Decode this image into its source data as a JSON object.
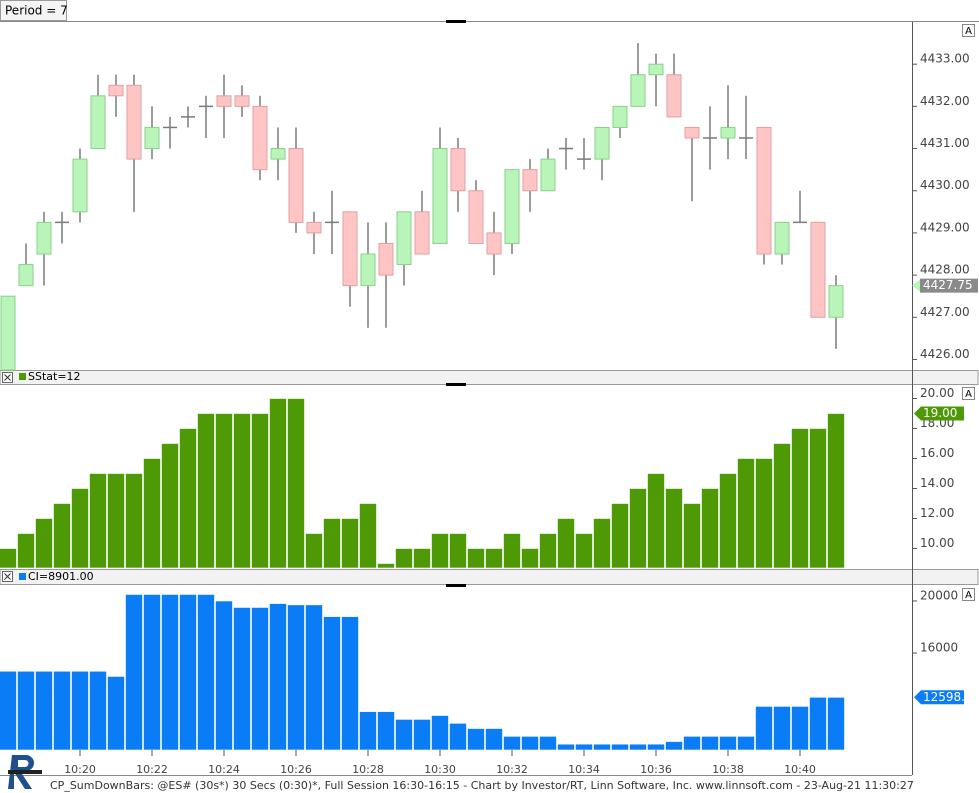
{
  "toolbar": "Period = 7",
  "footer": "CP_SumDownBars: @ES# (30s*) 30 Secs (0:30)*, Full Session 16:30-16:15 - Chart by Investor/RT, Linn Software, Inc. www.linnsoft.com - 23-Aug-21 11:30:27",
  "chart_data": [
    {
      "type": "candlestick",
      "scale_button": "A",
      "up_color": "#b9f5b9",
      "down_color": "#ffc4c4",
      "tag_color": "#8a8a8a",
      "last_label": "4427.75",
      "open": [
        4425.75,
        4427.75,
        4428.5,
        4429.25,
        4429.5,
        4431,
        4432.5,
        4432.5,
        4431,
        4431.5,
        4431.75,
        4432,
        4432.25,
        4432.25,
        4432,
        4430.75,
        4431,
        4429.25,
        4429.25,
        4429.5,
        4427.75,
        4428.75,
        4428.25,
        4429.5,
        4428.75,
        4431,
        4430,
        4429,
        4428.75,
        4430.5,
        4430,
        4431,
        4430.75,
        4430.75,
        4431.5,
        4432,
        4432.75,
        4432.75,
        4431.5,
        4431.25,
        4431.25,
        4431.25,
        4431.5,
        4428.5,
        4429.25,
        4429.25,
        4427
      ],
      "high": [
        4427.5,
        4428.75,
        4429.5,
        4429.5,
        4431,
        4432.75,
        4432.75,
        4432.75,
        4432,
        4431.75,
        4432,
        4432.25,
        4432.75,
        4432.5,
        4432.25,
        4431.5,
        4431.5,
        4429.5,
        4430,
        4429.5,
        4429.25,
        4429.25,
        4429.5,
        4430,
        4431.5,
        4431.25,
        4430.25,
        4429.5,
        4430.5,
        4430.75,
        4431,
        4431.25,
        4431.25,
        4431.5,
        4432,
        4433.5,
        4433.25,
        4433.25,
        4431.5,
        4432,
        4432.5,
        4432.25,
        4431.5,
        4429.25,
        4430,
        4429.25,
        4428
      ],
      "low": [
        4425.75,
        4427.75,
        4427.75,
        4428.75,
        4429.25,
        4431,
        4431.75,
        4429.5,
        4430.75,
        4431,
        4431.5,
        4431.25,
        4431.25,
        4431.75,
        4430.25,
        4430.25,
        4429,
        4428.5,
        4428.5,
        4427.25,
        4426.75,
        4426.75,
        4427.75,
        4428.5,
        4428.75,
        4429.5,
        4428.75,
        4428,
        4428.5,
        4429.5,
        4430,
        4430.5,
        4430.5,
        4430.25,
        4431.25,
        4432,
        4432,
        4431.75,
        4429.75,
        4430.5,
        4430.75,
        4430.75,
        4428.25,
        4428.25,
        4429.25,
        4427,
        4426.25
      ],
      "close": [
        4427.5,
        4428.25,
        4429.25,
        4429.25,
        4430.75,
        4432.25,
        4432.25,
        4430.75,
        4431.5,
        4431.5,
        4431.75,
        4432,
        4432,
        4432,
        4430.5,
        4431,
        4429.25,
        4429,
        4429.25,
        4427.75,
        4428.5,
        4428,
        4429.5,
        4428.5,
        4431,
        4430,
        4428.75,
        4428.5,
        4430.5,
        4430,
        4430.75,
        4431,
        4430.75,
        4431.5,
        4432,
        4432.75,
        4433,
        4431.75,
        4431.25,
        4431.25,
        4431.5,
        4431.25,
        4428.5,
        4429.25,
        4429.25,
        4427,
        4427.75
      ],
      "ylim": [
        4425.75,
        4434
      ],
      "yticks": [
        {
          "value": 4426,
          "label": "4426.00"
        },
        {
          "value": 4427,
          "label": "4427.00"
        },
        {
          "value": 4428,
          "label": "4428.00"
        },
        {
          "value": 4429,
          "label": "4429.00"
        },
        {
          "value": 4430,
          "label": "4430.00"
        },
        {
          "value": 4431,
          "label": "4431.00"
        },
        {
          "value": 4432,
          "label": "4432.00"
        },
        {
          "value": 4433,
          "label": "4433.00"
        }
      ]
    },
    {
      "type": "bar",
      "label": "SStat=12",
      "scale_button": "A",
      "color": "#4e9a06",
      "tag_color": "#4e9a06",
      "last_label": "19.00",
      "values": [
        10,
        11,
        12,
        13,
        14,
        15,
        15,
        15,
        16,
        17,
        18,
        19,
        19,
        19,
        19,
        20,
        20,
        11,
        12,
        12,
        13,
        9,
        10,
        10,
        11,
        11,
        10,
        10,
        11,
        10,
        11,
        12,
        11,
        12,
        13,
        14,
        15,
        14,
        13,
        14,
        15,
        16,
        16,
        17,
        18,
        18,
        19
      ],
      "ylim": [
        8.7,
        20.9
      ],
      "yticks": [
        {
          "value": 10,
          "label": "10.00"
        },
        {
          "value": 12,
          "label": "12.00"
        },
        {
          "value": 14,
          "label": "14.00"
        },
        {
          "value": 16,
          "label": "16.00"
        },
        {
          "value": 18,
          "label": "18.00"
        },
        {
          "value": 20,
          "label": "20.00"
        }
      ]
    },
    {
      "type": "bar",
      "label": "CI=8901.00",
      "scale_button": "A",
      "color": "#0a7cf5",
      "tag_color": "#0a7cf5",
      "last_label": "12598.00",
      "categories": [
        null,
        null,
        null,
        null,
        "10:20",
        null,
        null,
        null,
        "10:22",
        null,
        null,
        null,
        "10:24",
        null,
        null,
        null,
        "10:26",
        null,
        null,
        null,
        "10:28",
        null,
        null,
        null,
        "10:30",
        null,
        null,
        null,
        "10:32",
        null,
        null,
        null,
        "10:34",
        null,
        null,
        null,
        "10:36",
        null,
        null,
        null,
        "10:38",
        null,
        null,
        null,
        "10:40",
        null,
        null
      ],
      "values": [
        14600,
        14600,
        14600,
        14600,
        14600,
        14600,
        14200,
        20500,
        20500,
        20500,
        20500,
        20500,
        20000,
        19500,
        19500,
        19800,
        19700,
        19700,
        18800,
        18800,
        11500,
        11500,
        10900,
        10900,
        11200,
        10600,
        10200,
        10200,
        9600,
        9600,
        9600,
        9000,
        9000,
        9000,
        9000,
        9000,
        9000,
        9200,
        9600,
        9600,
        9600,
        9600,
        11900,
        11900,
        11900,
        12600,
        12598
      ],
      "ylim": [
        8550,
        21150
      ],
      "yticks": [
        16000,
        20000
      ]
    }
  ]
}
